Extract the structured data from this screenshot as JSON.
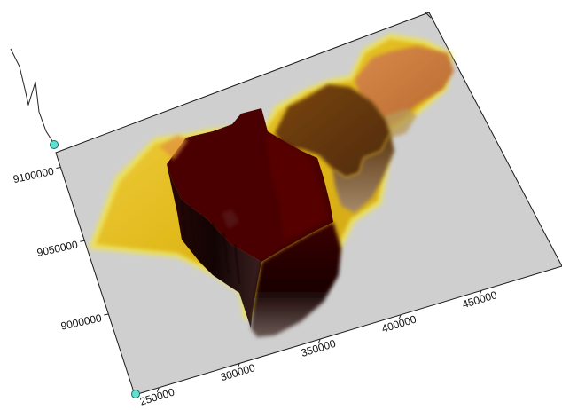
{
  "chart_data": {
    "type": "3d-surface",
    "title": "",
    "xlabel": "",
    "ylabel": "",
    "x_ticks": [
      250000,
      300000,
      350000,
      400000,
      450000
    ],
    "y_ticks": [
      9000000,
      9050000,
      9100000
    ],
    "x_tick_labels": [
      "250000",
      "300000",
      "350000",
      "400000",
      "450000"
    ],
    "y_tick_labels": [
      "9000000",
      "9050000",
      "9100000"
    ],
    "colors": {
      "base_plane": "#cfcfcf",
      "low": "#e8c51e",
      "mid_low": "#c77a3e",
      "mid": "#6b3a10",
      "high": "#4a0000"
    },
    "grid": false,
    "legend": "none"
  }
}
